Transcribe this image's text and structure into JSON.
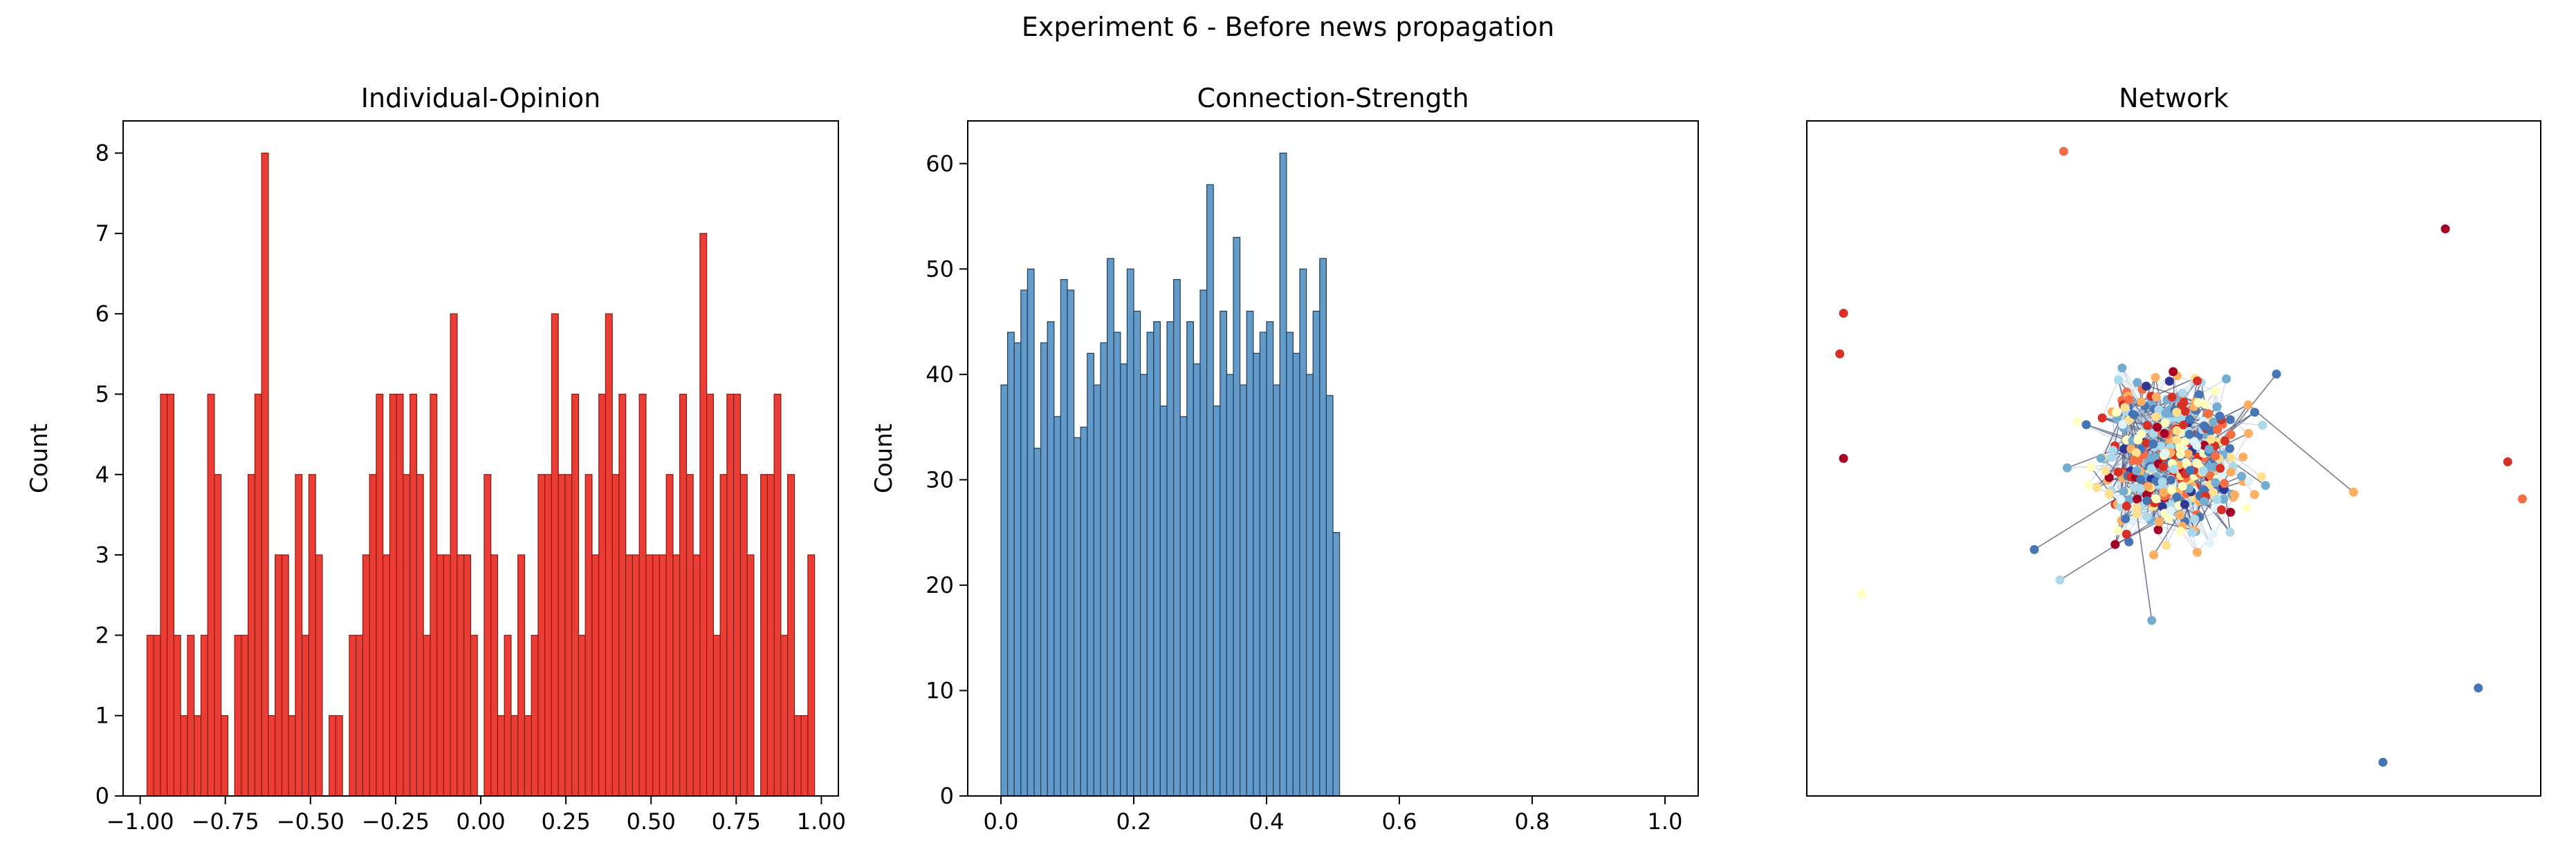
{
  "figure": {
    "suptitle": "Experiment 6 - Before news propagation"
  },
  "chart_data": [
    {
      "type": "bar",
      "title": "Individual-Opinion",
      "xlabel": "",
      "ylabel": "Count",
      "bins": 100,
      "xlim": [
        -1.05,
        1.05
      ],
      "ylim": [
        0,
        8.4
      ],
      "xticks": [
        -1.0,
        -0.75,
        -0.5,
        -0.25,
        0.0,
        0.25,
        0.5,
        0.75,
        1.0
      ],
      "xtick_labels": [
        "−1.00",
        "−0.75",
        "−0.50",
        "−0.25",
        "0.00",
        "0.25",
        "0.50",
        "0.75",
        "1.00"
      ],
      "yticks": [
        0,
        1,
        2,
        3,
        4,
        5,
        6,
        7,
        8
      ],
      "ytick_labels": [
        "0",
        "1",
        "2",
        "3",
        "4",
        "5",
        "6",
        "7",
        "8"
      ],
      "x_range": [
        -0.98,
        1.0
      ],
      "color": "#e8332a",
      "edgecolor": "#8b1a10",
      "values": [
        2,
        2,
        5,
        5,
        2,
        1,
        2,
        1,
        2,
        5,
        4,
        1,
        0,
        2,
        2,
        4,
        5,
        8,
        1,
        3,
        3,
        1,
        4,
        2,
        4,
        3,
        0,
        1,
        1,
        0,
        2,
        2,
        3,
        4,
        5,
        3,
        5,
        5,
        4,
        5,
        4,
        2,
        5,
        3,
        3,
        6,
        3,
        3,
        2,
        0,
        4,
        3,
        1,
        2,
        1,
        3,
        1,
        2,
        4,
        4,
        6,
        4,
        4,
        5,
        2,
        4,
        3,
        5,
        6,
        4,
        5,
        3,
        3,
        5,
        3,
        3,
        3,
        4,
        3,
        5,
        4,
        3,
        7,
        5,
        2,
        4,
        5,
        5,
        4,
        3,
        0,
        4,
        4,
        5,
        2,
        4,
        1,
        1,
        3,
        0
      ]
    },
    {
      "type": "bar",
      "title": "Connection-Strength",
      "xlabel": "",
      "ylabel": "Count",
      "bins": 100,
      "xlim": [
        -0.05,
        1.05
      ],
      "ylim": [
        0,
        64.05
      ],
      "xticks": [
        0.0,
        0.2,
        0.4,
        0.6,
        0.8,
        1.0
      ],
      "xtick_labels": [
        "0.0",
        "0.2",
        "0.4",
        "0.6",
        "0.8",
        "1.0"
      ],
      "yticks": [
        0,
        10,
        20,
        30,
        40,
        50,
        60
      ],
      "ytick_labels": [
        "0",
        "10",
        "20",
        "30",
        "40",
        "50",
        "60"
      ],
      "x_range": [
        0.0,
        1.0
      ],
      "color": "#5b95c4",
      "edgecolor": "#1f3e5a",
      "values": [
        39,
        44,
        43,
        48,
        50,
        33,
        43,
        45,
        36,
        49,
        48,
        34,
        35,
        42,
        39,
        43,
        51,
        44,
        41,
        50,
        46,
        40,
        44,
        45,
        37,
        45,
        49,
        36,
        45,
        41,
        48,
        58,
        37,
        46,
        40,
        53,
        39,
        46,
        42,
        44,
        45,
        39,
        61,
        44,
        42,
        50,
        40,
        46,
        51,
        38,
        25,
        0,
        0,
        0,
        0,
        0,
        0,
        0,
        0,
        0,
        0,
        0,
        0,
        0,
        0,
        0,
        0,
        0,
        0,
        0,
        0,
        0,
        0,
        0,
        0,
        0,
        0,
        0,
        0,
        0,
        0,
        0,
        0,
        0,
        0,
        0,
        0,
        0,
        0,
        0,
        0,
        0,
        0,
        0,
        0,
        0,
        0,
        0,
        0,
        0
      ]
    },
    {
      "type": "scatter",
      "title": "Network",
      "xlabel": "",
      "ylabel": "",
      "colormap": [
        "#313695",
        "#4575b4",
        "#74add1",
        "#abd9e9",
        "#e0f3f8",
        "#ffffbf",
        "#fee090",
        "#fdae61",
        "#f46d43",
        "#d73027",
        "#a50026"
      ],
      "outliers": [
        {
          "x": 0.35,
          "y": 0.955,
          "c": 0.75
        },
        {
          "x": 0.87,
          "y": 0.84,
          "c": 0.95
        },
        {
          "x": 0.05,
          "y": 0.715,
          "c": 0.85
        },
        {
          "x": 0.045,
          "y": 0.655,
          "c": 0.9
        },
        {
          "x": 0.05,
          "y": 0.5,
          "c": 0.95
        },
        {
          "x": 0.955,
          "y": 0.495,
          "c": 0.85
        },
        {
          "x": 0.975,
          "y": 0.44,
          "c": 0.75
        },
        {
          "x": 0.075,
          "y": 0.3,
          "c": 0.45
        },
        {
          "x": 0.915,
          "y": 0.16,
          "c": 0.05
        },
        {
          "x": 0.785,
          "y": 0.05,
          "c": 0.1
        },
        {
          "x": 0.745,
          "y": 0.45,
          "c": 0.7
        },
        {
          "x": 0.625,
          "y": 0.46,
          "c": 0.2
        },
        {
          "x": 0.64,
          "y": 0.625,
          "c": 0.05
        },
        {
          "x": 0.31,
          "y": 0.365,
          "c": 0.05
        },
        {
          "x": 0.345,
          "y": 0.32,
          "c": 0.25
        },
        {
          "x": 0.47,
          "y": 0.26,
          "c": 0.15
        }
      ]
    }
  ]
}
